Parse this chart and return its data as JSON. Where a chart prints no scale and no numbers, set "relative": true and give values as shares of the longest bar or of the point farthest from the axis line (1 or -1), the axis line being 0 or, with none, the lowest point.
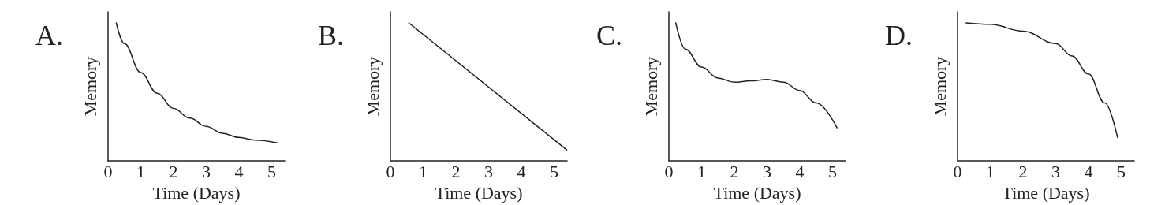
{
  "chart_data": [
    {
      "type": "line",
      "title": "A.",
      "xlabel": "Time (Days)",
      "ylabel": "Memory",
      "relative": true,
      "color": "#222222",
      "marker": "none",
      "line_style": "solid",
      "xlim": [
        0,
        5.4
      ],
      "xticks": [
        0,
        1,
        2,
        3,
        4,
        5
      ],
      "x": [
        0.25,
        0.5,
        1,
        1.5,
        2,
        2.5,
        3,
        3.5,
        4,
        4.5,
        5.17
      ],
      "values": [
        1,
        0.85,
        0.64,
        0.49,
        0.38,
        0.31,
        0.25,
        0.2,
        0.17,
        0.15,
        0.13
      ]
    },
    {
      "type": "line",
      "title": "B.",
      "xlabel": "Time (Days)",
      "ylabel": "Memory",
      "relative": true,
      "color": "#222222",
      "marker": "none",
      "line_style": "solid",
      "xlim": [
        0,
        5.4
      ],
      "xticks": [
        0,
        1,
        2,
        3,
        4,
        5
      ],
      "x": [
        0.56,
        5.39
      ],
      "values": [
        1,
        0.08
      ]
    },
    {
      "type": "line",
      "title": "C.",
      "xlabel": "Time (Days)",
      "ylabel": "Memory",
      "relative": true,
      "color": "#222222",
      "marker": "none",
      "line_style": "solid",
      "xlim": [
        0,
        5.4
      ],
      "xticks": [
        0,
        1,
        2,
        3,
        4,
        5
      ],
      "x": [
        0.21,
        0.5,
        1,
        1.5,
        2,
        2.5,
        3,
        3.5,
        4,
        4.5,
        5.14
      ],
      "values": [
        1,
        0.81,
        0.68,
        0.6,
        0.57,
        0.58,
        0.59,
        0.57,
        0.51,
        0.42,
        0.24
      ]
    },
    {
      "type": "line",
      "title": "D.",
      "xlabel": "Time (Days)",
      "ylabel": "Memory",
      "relative": true,
      "color": "#222222",
      "marker": "none",
      "line_style": "solid",
      "xlim": [
        0,
        5.4
      ],
      "xticks": [
        0,
        1,
        2,
        3,
        4,
        5
      ],
      "x": [
        0.26,
        1,
        2,
        3,
        3.5,
        4,
        4.5,
        4.89
      ],
      "values": [
        1,
        0.99,
        0.94,
        0.85,
        0.76,
        0.63,
        0.42,
        0.17
      ]
    }
  ]
}
